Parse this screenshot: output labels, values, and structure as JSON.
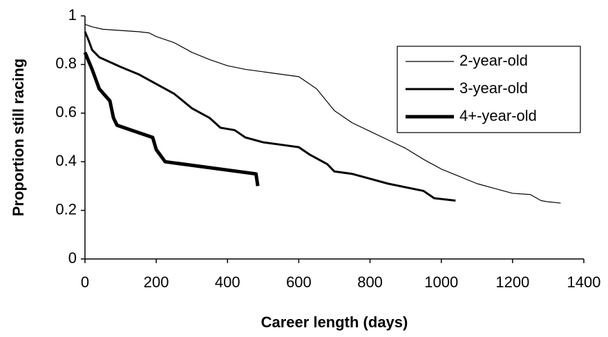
{
  "chart_data": {
    "type": "line",
    "xlabel": "Career length (days)",
    "ylabel": "Proportion still racing",
    "xlim": [
      0,
      1400
    ],
    "xticks": [
      0,
      200,
      400,
      600,
      800,
      1000,
      1200,
      1400
    ],
    "ylim": [
      0,
      1
    ],
    "yticks": [
      0,
      0.2,
      0.4,
      0.6,
      0.8,
      1
    ],
    "legend": "upper right",
    "series": [
      {
        "name": "2-year-old",
        "color": "#000000",
        "line_width": 1.2,
        "x": [
          0,
          20,
          50,
          100,
          150,
          180,
          200,
          250,
          300,
          350,
          400,
          450,
          500,
          550,
          600,
          620,
          650,
          700,
          750,
          800,
          850,
          900,
          950,
          1000,
          1050,
          1100,
          1150,
          1200,
          1250,
          1280,
          1300,
          1335
        ],
        "values": [
          0.965,
          0.955,
          0.945,
          0.94,
          0.935,
          0.93,
          0.915,
          0.89,
          0.85,
          0.82,
          0.795,
          0.78,
          0.77,
          0.76,
          0.75,
          0.73,
          0.7,
          0.61,
          0.56,
          0.525,
          0.49,
          0.455,
          0.41,
          0.37,
          0.34,
          0.31,
          0.29,
          0.27,
          0.265,
          0.24,
          0.235,
          0.23
        ]
      },
      {
        "name": "3-year-old",
        "color": "#000000",
        "line_width": 3,
        "x": [
          0,
          10,
          20,
          40,
          100,
          150,
          200,
          250,
          300,
          350,
          380,
          420,
          450,
          500,
          550,
          600,
          630,
          680,
          700,
          750,
          800,
          850,
          900,
          950,
          980,
          1040
        ],
        "values": [
          0.935,
          0.9,
          0.86,
          0.83,
          0.79,
          0.76,
          0.72,
          0.68,
          0.62,
          0.58,
          0.54,
          0.53,
          0.5,
          0.48,
          0.47,
          0.46,
          0.43,
          0.39,
          0.36,
          0.35,
          0.33,
          0.31,
          0.295,
          0.28,
          0.25,
          0.24
        ]
      },
      {
        "name": "4+-year-old",
        "color": "#000000",
        "line_width": 5,
        "x": [
          0,
          20,
          40,
          70,
          80,
          90,
          150,
          190,
          200,
          225,
          480,
          485
        ],
        "values": [
          0.85,
          0.78,
          0.7,
          0.65,
          0.58,
          0.55,
          0.52,
          0.5,
          0.45,
          0.4,
          0.35,
          0.3
        ]
      }
    ]
  }
}
